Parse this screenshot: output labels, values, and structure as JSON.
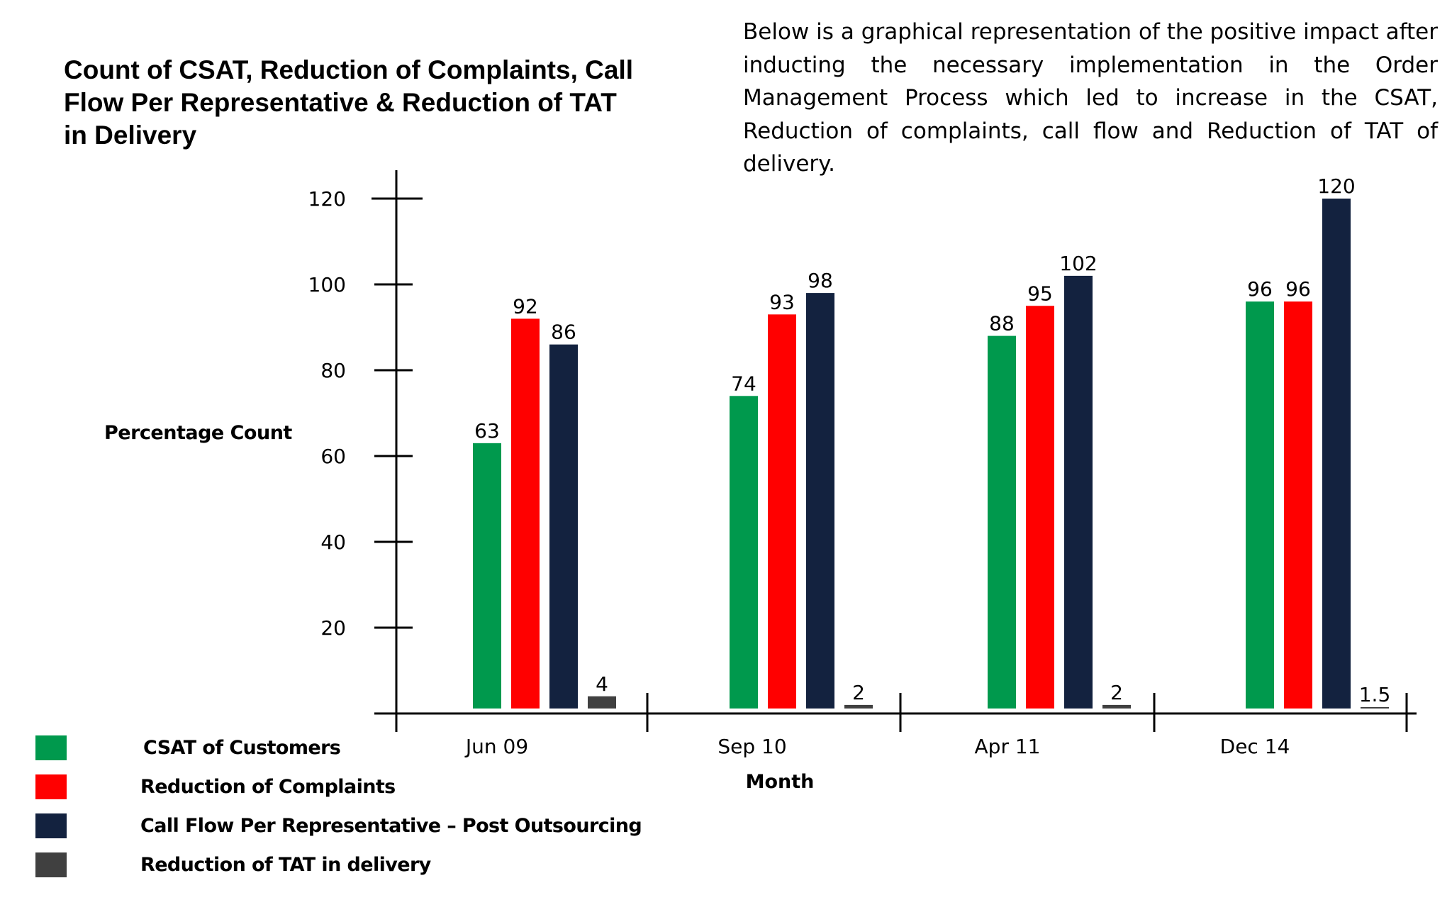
{
  "title": "Count of CSAT, Reduction of Complaints, Call Flow Per Representative & Reduction of TAT in Delivery",
  "description": "Below is a graphical representation of the positive impact after inducting the necessary implementation in the Order Management Process which led to increase in the CSAT, Reduction of complaints, call flow and Reduction of TAT of delivery.",
  "chart_data": {
    "type": "bar",
    "xlabel": "Month",
    "ylabel": "Percentage Count",
    "ylim": [
      0,
      120
    ],
    "y_ticks": [
      20,
      40,
      60,
      80,
      100,
      120
    ],
    "grid": false,
    "legend_position": "bottom-left",
    "categories": [
      "Jun 09",
      "Sep 10",
      "Apr 11",
      "Dec 14"
    ],
    "series": [
      {
        "name": "CSAT of Customers",
        "color": "#00994D",
        "values": [
          63,
          74,
          88,
          96
        ]
      },
      {
        "name": "Reduction of Complaints",
        "color": "#FF0000",
        "values": [
          92,
          93,
          95,
          96
        ]
      },
      {
        "name": "Call Flow Per Representative – Post Outsourcing",
        "color": "#13223F",
        "values": [
          86,
          98,
          102,
          120
        ]
      },
      {
        "name": "Reduction of TAT in delivery",
        "color": "#404040",
        "values": [
          4,
          2,
          2,
          1.5
        ]
      }
    ]
  }
}
